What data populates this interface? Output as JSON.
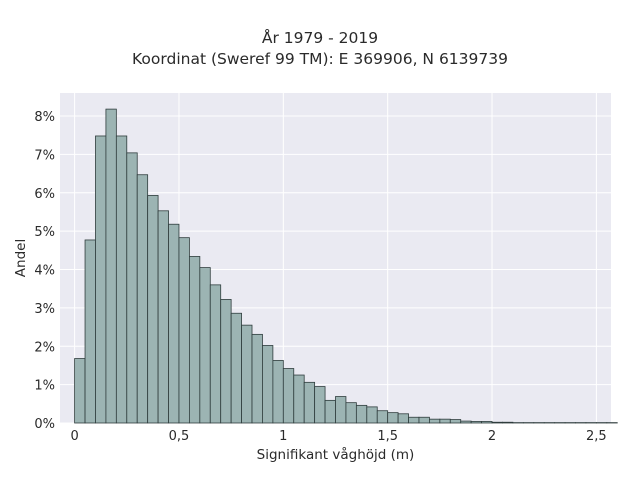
{
  "chart_data": {
    "type": "bar",
    "title": [
      "År 1979 - 2019",
      "Koordinat (Sweref 99 TM): E 369906, N 6139739"
    ],
    "xlabel": "Signifikant våghöjd (m)",
    "ylabel": "Andel",
    "xlim": [
      -0.07,
      2.57
    ],
    "ylim": [
      0,
      8.6
    ],
    "x_ticks": [
      0,
      0.5,
      1,
      1.5,
      2,
      2.5
    ],
    "x_tick_labels": [
      "0",
      "0,5",
      "1",
      "1,5",
      "2",
      "2,5"
    ],
    "y_ticks": [
      0,
      1,
      2,
      3,
      4,
      5,
      6,
      7,
      8
    ],
    "y_tick_labels": [
      "0%",
      "1%",
      "2%",
      "3%",
      "4%",
      "5%",
      "6%",
      "7%",
      "8%"
    ],
    "y_unit": "percent",
    "grid": true,
    "bin_width": 0.05,
    "bin_start": 0,
    "values": [
      1.68,
      4.77,
      7.48,
      8.18,
      7.48,
      7.04,
      6.47,
      5.93,
      5.53,
      5.18,
      4.83,
      4.34,
      4.05,
      3.6,
      3.22,
      2.86,
      2.55,
      2.31,
      2.02,
      1.63,
      1.42,
      1.25,
      1.06,
      0.95,
      0.59,
      0.69,
      0.53,
      0.46,
      0.42,
      0.32,
      0.27,
      0.24,
      0.15,
      0.15,
      0.1,
      0.1,
      0.09,
      0.05,
      0.04,
      0.04,
      0.02,
      0.02,
      0.01,
      0.01,
      0.01,
      0.01,
      0.01,
      0.01,
      0.01,
      0.01,
      0.01,
      0.01
    ],
    "colors": {
      "bar_fill": "#9cb4b3",
      "bar_edge": "#2f3d3d",
      "plot_bg": "#eaeaf2",
      "grid": "#ffffff"
    }
  }
}
